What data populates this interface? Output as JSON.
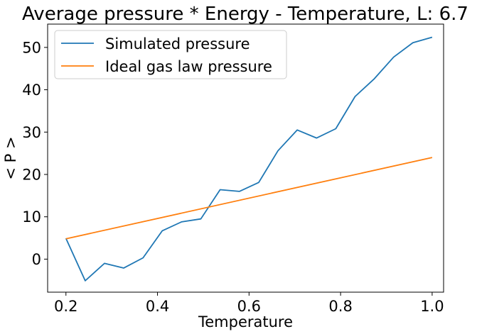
{
  "chart_data": {
    "type": "line",
    "title": "Average pressure * Energy - Temperature, L: 6.7",
    "xlabel": "Temperature",
    "ylabel": "< P >",
    "xlim": [
      0.16,
      1.025
    ],
    "ylim": [
      -7.8,
      55.5
    ],
    "xticks": [
      0.2,
      0.4,
      0.6,
      0.8,
      1.0
    ],
    "xtick_labels": [
      "0.2",
      "0.4",
      "0.6",
      "0.8",
      "1.0"
    ],
    "yticks": [
      0,
      10,
      20,
      30,
      40,
      50
    ],
    "ytick_labels": [
      "0",
      "10",
      "20",
      "30",
      "40",
      "50"
    ],
    "grid": false,
    "legend_position": "upper-left",
    "series": [
      {
        "name": "Simulated pressure",
        "color": "#1f77b4",
        "x": [
          0.2,
          0.2421,
          0.2842,
          0.3263,
          0.3684,
          0.4105,
          0.4526,
          0.4947,
          0.5368,
          0.5789,
          0.6211,
          0.6632,
          0.7053,
          0.7474,
          0.7895,
          0.8316,
          0.8737,
          0.9158,
          0.9579,
          1.0
        ],
        "y": [
          4.9,
          -5.1,
          -1.0,
          -2.1,
          0.3,
          6.7,
          8.8,
          9.5,
          16.4,
          16.0,
          18.1,
          25.6,
          30.5,
          28.6,
          30.8,
          38.4,
          42.6,
          47.7,
          51.1,
          52.4
        ]
      },
      {
        "name": "Ideal gas law pressure",
        "color": "#ff7f0e",
        "x": [
          0.2,
          1.0
        ],
        "y": [
          4.8,
          24.0
        ]
      }
    ]
  }
}
